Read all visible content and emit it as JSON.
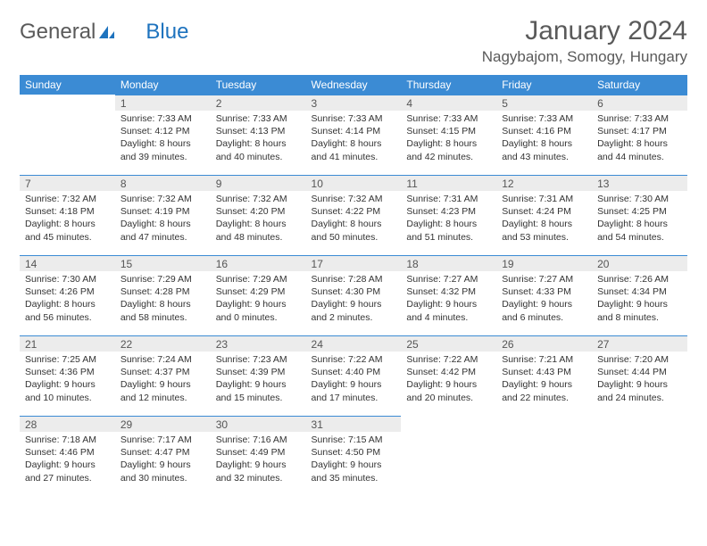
{
  "logo": {
    "text_left": "General",
    "text_right": "Blue"
  },
  "header": {
    "month": "January 2024",
    "location": "Nagybajom, Somogy, Hungary"
  },
  "colors": {
    "header_bar": "#3b8bd4",
    "header_text": "#ffffff",
    "row_divider": "#3b8bd4",
    "daynum_bg": "#ececec",
    "body_text": "#333333",
    "title_text": "#5a5a5a",
    "logo_gray": "#5a5a5a",
    "logo_blue": "#1e73be"
  },
  "daysOfWeek": [
    "Sunday",
    "Monday",
    "Tuesday",
    "Wednesday",
    "Thursday",
    "Friday",
    "Saturday"
  ],
  "weeks": [
    [
      {
        "n": "",
        "sr": "",
        "ss": "",
        "dl1": "",
        "dl2": ""
      },
      {
        "n": "1",
        "sr": "Sunrise: 7:33 AM",
        "ss": "Sunset: 4:12 PM",
        "dl1": "Daylight: 8 hours",
        "dl2": "and 39 minutes."
      },
      {
        "n": "2",
        "sr": "Sunrise: 7:33 AM",
        "ss": "Sunset: 4:13 PM",
        "dl1": "Daylight: 8 hours",
        "dl2": "and 40 minutes."
      },
      {
        "n": "3",
        "sr": "Sunrise: 7:33 AM",
        "ss": "Sunset: 4:14 PM",
        "dl1": "Daylight: 8 hours",
        "dl2": "and 41 minutes."
      },
      {
        "n": "4",
        "sr": "Sunrise: 7:33 AM",
        "ss": "Sunset: 4:15 PM",
        "dl1": "Daylight: 8 hours",
        "dl2": "and 42 minutes."
      },
      {
        "n": "5",
        "sr": "Sunrise: 7:33 AM",
        "ss": "Sunset: 4:16 PM",
        "dl1": "Daylight: 8 hours",
        "dl2": "and 43 minutes."
      },
      {
        "n": "6",
        "sr": "Sunrise: 7:33 AM",
        "ss": "Sunset: 4:17 PM",
        "dl1": "Daylight: 8 hours",
        "dl2": "and 44 minutes."
      }
    ],
    [
      {
        "n": "7",
        "sr": "Sunrise: 7:32 AM",
        "ss": "Sunset: 4:18 PM",
        "dl1": "Daylight: 8 hours",
        "dl2": "and 45 minutes."
      },
      {
        "n": "8",
        "sr": "Sunrise: 7:32 AM",
        "ss": "Sunset: 4:19 PM",
        "dl1": "Daylight: 8 hours",
        "dl2": "and 47 minutes."
      },
      {
        "n": "9",
        "sr": "Sunrise: 7:32 AM",
        "ss": "Sunset: 4:20 PM",
        "dl1": "Daylight: 8 hours",
        "dl2": "and 48 minutes."
      },
      {
        "n": "10",
        "sr": "Sunrise: 7:32 AM",
        "ss": "Sunset: 4:22 PM",
        "dl1": "Daylight: 8 hours",
        "dl2": "and 50 minutes."
      },
      {
        "n": "11",
        "sr": "Sunrise: 7:31 AM",
        "ss": "Sunset: 4:23 PM",
        "dl1": "Daylight: 8 hours",
        "dl2": "and 51 minutes."
      },
      {
        "n": "12",
        "sr": "Sunrise: 7:31 AM",
        "ss": "Sunset: 4:24 PM",
        "dl1": "Daylight: 8 hours",
        "dl2": "and 53 minutes."
      },
      {
        "n": "13",
        "sr": "Sunrise: 7:30 AM",
        "ss": "Sunset: 4:25 PM",
        "dl1": "Daylight: 8 hours",
        "dl2": "and 54 minutes."
      }
    ],
    [
      {
        "n": "14",
        "sr": "Sunrise: 7:30 AM",
        "ss": "Sunset: 4:26 PM",
        "dl1": "Daylight: 8 hours",
        "dl2": "and 56 minutes."
      },
      {
        "n": "15",
        "sr": "Sunrise: 7:29 AM",
        "ss": "Sunset: 4:28 PM",
        "dl1": "Daylight: 8 hours",
        "dl2": "and 58 minutes."
      },
      {
        "n": "16",
        "sr": "Sunrise: 7:29 AM",
        "ss": "Sunset: 4:29 PM",
        "dl1": "Daylight: 9 hours",
        "dl2": "and 0 minutes."
      },
      {
        "n": "17",
        "sr": "Sunrise: 7:28 AM",
        "ss": "Sunset: 4:30 PM",
        "dl1": "Daylight: 9 hours",
        "dl2": "and 2 minutes."
      },
      {
        "n": "18",
        "sr": "Sunrise: 7:27 AM",
        "ss": "Sunset: 4:32 PM",
        "dl1": "Daylight: 9 hours",
        "dl2": "and 4 minutes."
      },
      {
        "n": "19",
        "sr": "Sunrise: 7:27 AM",
        "ss": "Sunset: 4:33 PM",
        "dl1": "Daylight: 9 hours",
        "dl2": "and 6 minutes."
      },
      {
        "n": "20",
        "sr": "Sunrise: 7:26 AM",
        "ss": "Sunset: 4:34 PM",
        "dl1": "Daylight: 9 hours",
        "dl2": "and 8 minutes."
      }
    ],
    [
      {
        "n": "21",
        "sr": "Sunrise: 7:25 AM",
        "ss": "Sunset: 4:36 PM",
        "dl1": "Daylight: 9 hours",
        "dl2": "and 10 minutes."
      },
      {
        "n": "22",
        "sr": "Sunrise: 7:24 AM",
        "ss": "Sunset: 4:37 PM",
        "dl1": "Daylight: 9 hours",
        "dl2": "and 12 minutes."
      },
      {
        "n": "23",
        "sr": "Sunrise: 7:23 AM",
        "ss": "Sunset: 4:39 PM",
        "dl1": "Daylight: 9 hours",
        "dl2": "and 15 minutes."
      },
      {
        "n": "24",
        "sr": "Sunrise: 7:22 AM",
        "ss": "Sunset: 4:40 PM",
        "dl1": "Daylight: 9 hours",
        "dl2": "and 17 minutes."
      },
      {
        "n": "25",
        "sr": "Sunrise: 7:22 AM",
        "ss": "Sunset: 4:42 PM",
        "dl1": "Daylight: 9 hours",
        "dl2": "and 20 minutes."
      },
      {
        "n": "26",
        "sr": "Sunrise: 7:21 AM",
        "ss": "Sunset: 4:43 PM",
        "dl1": "Daylight: 9 hours",
        "dl2": "and 22 minutes."
      },
      {
        "n": "27",
        "sr": "Sunrise: 7:20 AM",
        "ss": "Sunset: 4:44 PM",
        "dl1": "Daylight: 9 hours",
        "dl2": "and 24 minutes."
      }
    ],
    [
      {
        "n": "28",
        "sr": "Sunrise: 7:18 AM",
        "ss": "Sunset: 4:46 PM",
        "dl1": "Daylight: 9 hours",
        "dl2": "and 27 minutes."
      },
      {
        "n": "29",
        "sr": "Sunrise: 7:17 AM",
        "ss": "Sunset: 4:47 PM",
        "dl1": "Daylight: 9 hours",
        "dl2": "and 30 minutes."
      },
      {
        "n": "30",
        "sr": "Sunrise: 7:16 AM",
        "ss": "Sunset: 4:49 PM",
        "dl1": "Daylight: 9 hours",
        "dl2": "and 32 minutes."
      },
      {
        "n": "31",
        "sr": "Sunrise: 7:15 AM",
        "ss": "Sunset: 4:50 PM",
        "dl1": "Daylight: 9 hours",
        "dl2": "and 35 minutes."
      },
      {
        "n": "",
        "sr": "",
        "ss": "",
        "dl1": "",
        "dl2": ""
      },
      {
        "n": "",
        "sr": "",
        "ss": "",
        "dl1": "",
        "dl2": ""
      },
      {
        "n": "",
        "sr": "",
        "ss": "",
        "dl1": "",
        "dl2": ""
      }
    ]
  ]
}
